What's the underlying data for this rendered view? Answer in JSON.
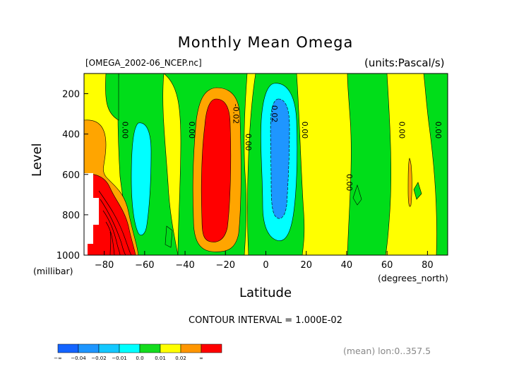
{
  "chart_data": {
    "type": "contour",
    "title": "Monthly Mean Omega",
    "file_label": "[OMEGA_2002-06_NCEP.nc]",
    "units_label": "(units:Pascal/s)",
    "xlabel": "Latitude",
    "xunit": "(degrees_north)",
    "ylabel": "Level",
    "yunit": "(millibar)",
    "xlim": [
      -90,
      90
    ],
    "ylim": [
      1000,
      100
    ],
    "x_ticks": [
      -80,
      -60,
      -40,
      -20,
      0,
      20,
      40,
      60,
      80
    ],
    "y_ticks": [
      200,
      400,
      600,
      800,
      1000
    ],
    "contour_interval_text": "CONTOUR INTERVAL = 1.000E-02",
    "footer_text": "(mean) lon:0..357.5",
    "contour_labels": [
      {
        "text": "0.00",
        "lat": -71,
        "lev": 380
      },
      {
        "text": "0.00",
        "lat": -38,
        "lev": 380
      },
      {
        "text": "-0.02",
        "lat": -16,
        "lev": 300
      },
      {
        "text": "0.00",
        "lat": -10,
        "lev": 440
      },
      {
        "text": "0.02",
        "lat": 3,
        "lev": 300
      },
      {
        "text": "0.00",
        "lat": 18,
        "lev": 380
      },
      {
        "text": "0.00",
        "lat": 40,
        "lev": 640
      },
      {
        "text": "0.00",
        "lat": 66,
        "lev": 380
      },
      {
        "text": "0.00",
        "lat": 84,
        "lev": 380
      }
    ],
    "colorbar": {
      "labels": [
        "-∞",
        "-0.04",
        "-0.02",
        "-0.01",
        "0.0",
        "0.01",
        "0.02",
        "∞"
      ],
      "colors": [
        "#1464ff",
        "#1e96ff",
        "#14c8ff",
        "#00ffff",
        "#14dc1e",
        "#ffff00",
        "#ff9600",
        "#ff0000"
      ]
    },
    "fields": {
      "yellow": "#ffff00",
      "green": "#00dd19",
      "orange": "#ffa500",
      "red": "#ff0000",
      "cyan": "#00ffff",
      "blue": "#1e96ff",
      "white": "#ffffff"
    }
  }
}
